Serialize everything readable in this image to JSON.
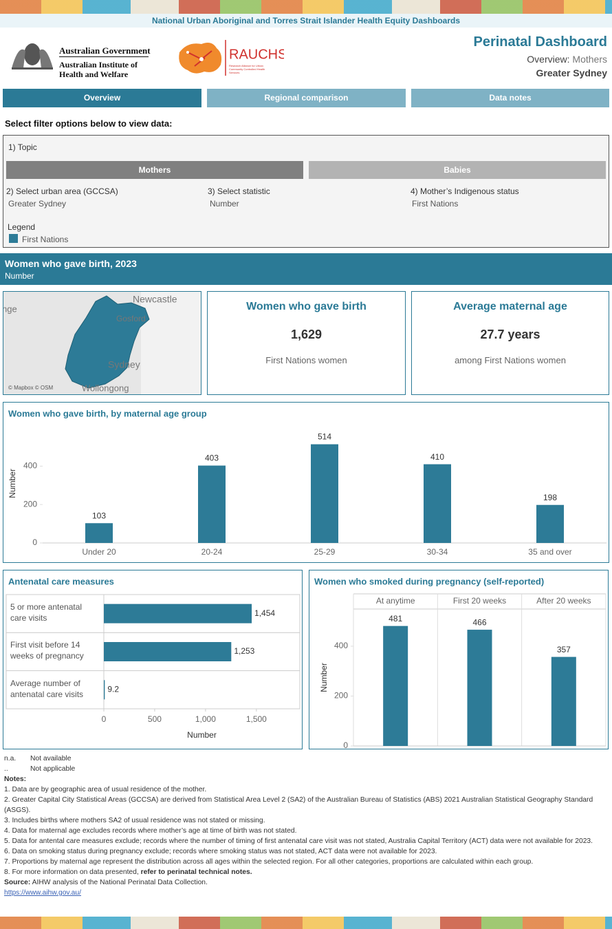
{
  "banner": "National Urban Aboriginal and Torres Strait Islander Health Equity Dashboards",
  "logos": {
    "government": "Australian Government",
    "aihw": [
      "Australian Institute of",
      "Health and Welfare"
    ],
    "rauchs": "RAUCHS",
    "rauchs_sub": [
      "Research Alliance for Urban",
      "Community Controlled Health",
      "Services"
    ]
  },
  "header": {
    "title": "Perinatal Dashboard",
    "view_label": "Overview:",
    "view_value": "Mothers",
    "region": "Greater Sydney"
  },
  "tabs": [
    "Overview",
    "Regional comparison",
    "Data notes"
  ],
  "filters": {
    "prompt": "Select filter options below to view data:",
    "topic_label": "1) Topic",
    "topic_options": [
      "Mothers",
      "Babies"
    ],
    "area_label": "2) Select urban area (GCCSA)",
    "area_value": "Greater Sydney",
    "statistic_label": "3) Select statistic",
    "statistic_value": "Number",
    "status_label": "4) Mother’s Indigenous status",
    "status_value": "First Nations",
    "legend_title": "Legend",
    "legend_item": "First Nations",
    "legend_color": "#2d7b97"
  },
  "section": {
    "title": "Women who gave birth, 2023",
    "subtitle": "Number"
  },
  "map": {
    "labels": [
      "Newcastle",
      "nge",
      "Gosford",
      "Sydney",
      "Wollongong"
    ],
    "credit": "© Mapbox © OSM"
  },
  "kpis": [
    {
      "title": "Women who gave birth",
      "value": "1,629",
      "caption": "First Nations women"
    },
    {
      "title": "Average maternal age",
      "value": "27.7 years",
      "caption": "among First Nations women"
    }
  ],
  "chart_data": [
    {
      "type": "bar",
      "title": "Women who gave birth, by maternal age group",
      "categories": [
        "Under 20",
        "20-24",
        "25-29",
        "30-34",
        "35 and over"
      ],
      "values": [
        103,
        403,
        514,
        410,
        198
      ],
      "color": "#2d7b97",
      "y_label": "Number",
      "ylim": [
        0,
        620
      ],
      "yticks": [
        0,
        200,
        400
      ],
      "grid": false
    },
    {
      "type": "hbar",
      "title": "Antenatal care measures",
      "categories": [
        "5 or more antenatal care visits",
        "First visit before 14 weeks of pregnancy",
        "Average number of antenatal care visits"
      ],
      "values": [
        1454,
        1253,
        9.2
      ],
      "value_labels": [
        "1,454",
        "1,253",
        "9.2"
      ],
      "color": "#2d7b97",
      "x_label": "Number",
      "xlim": [
        0,
        1927
      ],
      "xticks": [
        0,
        500,
        {
          "value": 1000,
          "label": "1,000"
        },
        {
          "value": 1500,
          "label": "1,500"
        }
      ]
    },
    {
      "type": "bar",
      "title": "Women who smoked during pregnancy (self-reported)",
      "categories": [
        "At anytime",
        "First 20 weeks",
        "After 20 weeks"
      ],
      "category_position": "top",
      "values": [
        481,
        466,
        357
      ],
      "color": "#2d7b97",
      "y_label": "Number",
      "ylim": [
        0,
        549
      ],
      "yticks": [
        0,
        200,
        400
      ],
      "grid": false
    }
  ],
  "notes": {
    "abbreviations": [
      {
        "code": "n.a.",
        "meaning": "Not available"
      },
      {
        "code": "..",
        "meaning": "Not applicable"
      }
    ],
    "heading": "Notes:",
    "items": [
      "1. Data are by geographic area of usual residence of the mother.",
      "2. Greater Capital City Statistical Areas (GCCSA) are derived from Statistical Area Level 2 (SA2) of the Australian Bureau of Statistics (ABS) 2021 Australian Statistical Geography Standard (ASGS).",
      "3. Includes births where mothers SA2 of usual residence was not stated or missing.",
      "4. Data for maternal age excludes records where mother’s age at time of birth was not stated.",
      "5. Data for  antental care measures exclude; records where the number of timing of first antenatal care visit was not stated, Australia Capital Territory (ACT) data were not available for 2023.",
      "6. Data on smoking status during pregnancy  exclude; records where smoking status was not stated, ACT data were not available for 2023.",
      "7. Proportions by maternal age represent the distribution across all ages within the selected region. For all other categories, proportions are calculated within each group."
    ],
    "more_info": {
      "text": "8. For more information on data presented,",
      "link": "refer to perinatal technical notes."
    },
    "source_label": "Source:",
    "source": "AIHW analysis of the National Perinatal Data Collection.",
    "url": "https://www.aihw.gov.au/"
  }
}
